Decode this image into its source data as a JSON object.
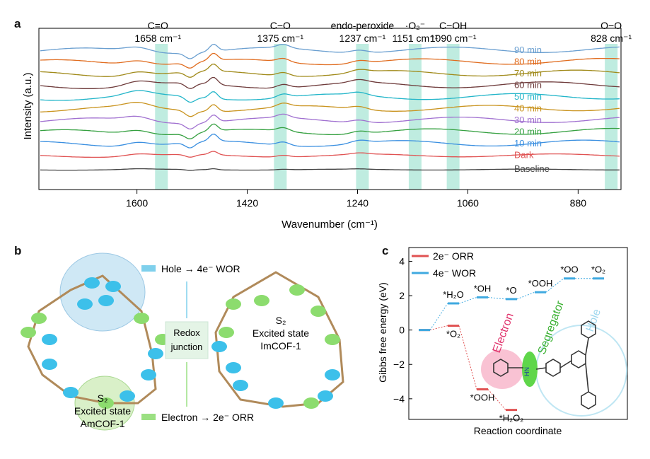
{
  "panels": {
    "a": "a",
    "b": "b",
    "c": "c"
  },
  "chart_data": [
    {
      "type": "line",
      "panel": "a",
      "ylabel": "Intensity (a.u.)",
      "xlabel": "Wavenumber (cm⁻¹)",
      "x_ticks": [
        "1600",
        "1420",
        "1240",
        "1060",
        "880"
      ],
      "xlim": [
        1760,
        810
      ],
      "bands": [
        {
          "name": "C=O",
          "wavenumber": "1658 cm⁻¹",
          "pos": 1560
        },
        {
          "name": "C−O",
          "wavenumber": "1375 cm⁻¹",
          "pos": 1366
        },
        {
          "name": "endo-peroxide",
          "wavenumber": "1237 cm⁻¹",
          "pos": 1232
        },
        {
          "name": "·O₂⁻",
          "wavenumber": "1151 cm⁻¹",
          "pos": 1146
        },
        {
          "name": "C−OH",
          "wavenumber": "1090 cm⁻¹",
          "pos": 1084
        },
        {
          "name": "O−O",
          "wavenumber": "828 cm⁻¹",
          "pos": 826
        }
      ],
      "series": [
        {
          "name": "90 min",
          "color": "#6a9fd0"
        },
        {
          "name": "80 min",
          "color": "#e06c1f"
        },
        {
          "name": "70 min",
          "color": "#a08a1a"
        },
        {
          "name": "60 min",
          "color": "#6e3b3b"
        },
        {
          "name": "50 min",
          "color": "#22b5c9"
        },
        {
          "name": "40 min",
          "color": "#c9931e"
        },
        {
          "name": "30 min",
          "color": "#a070d0"
        },
        {
          "name": "20 min",
          "color": "#35a040"
        },
        {
          "name": "10 min",
          "color": "#3a8fe0"
        },
        {
          "name": "Dark",
          "color": "#e05252"
        },
        {
          "name": "Baseline",
          "color": "#444444"
        }
      ]
    },
    {
      "type": "line",
      "panel": "c",
      "ylabel": "Gibbs free energy (eV)",
      "xlabel": "Reaction coordinate",
      "yticks": [
        "4",
        "2",
        "0",
        "−2",
        "−4"
      ],
      "ylim": [
        -5.2,
        4.8
      ],
      "legend": [
        "2e⁻ ORR",
        "4e⁻ WOR"
      ],
      "series": [
        {
          "name": "2e⁻ ORR",
          "color": "#e05252",
          "x": [
            0,
            1,
            2,
            3
          ],
          "y": [
            0.0,
            0.25,
            -3.45,
            -4.65
          ],
          "labels": [
            "",
            "*O₂",
            "*OOH",
            "*H₂O₂"
          ]
        },
        {
          "name": "4e⁻ WOR",
          "color": "#3fa9e0",
          "x": [
            0,
            1,
            2,
            3,
            4,
            5,
            6
          ],
          "y": [
            0.0,
            1.55,
            1.9,
            1.8,
            2.2,
            3.0,
            3.0
          ],
          "labels": [
            "",
            "*H₂O",
            "*OH",
            "*O",
            "*OOH",
            "*OO",
            "*O₂"
          ]
        }
      ]
    }
  ],
  "diagram": {
    "legend_hole": "Hole → 4e⁻ WOR",
    "legend_electron": "Electron → 2e⁻ ORR",
    "redox": [
      "Redox",
      "junction"
    ],
    "left": {
      "state": "S₂",
      "line1": "Excited state",
      "line2": "AmCOF-1"
    },
    "right": {
      "state": "S₂",
      "line1": "Excited state",
      "line2": "ImCOF-1"
    },
    "mol_labels": {
      "electron": "Electron",
      "segregator": "Segregator",
      "hole": "Hole",
      "hn": "HN"
    }
  },
  "colors": {
    "band": "#bfece0",
    "hole": "#3cc0ea",
    "electron": "#8cdc6e",
    "bond": "#b08a5a"
  }
}
